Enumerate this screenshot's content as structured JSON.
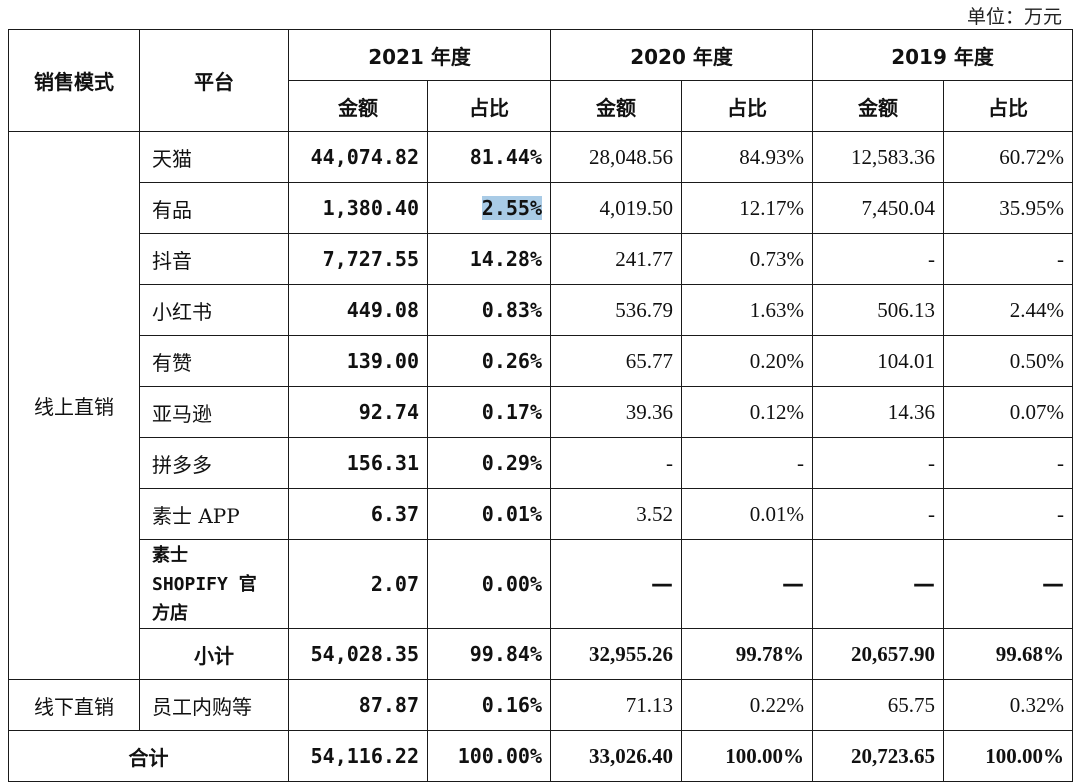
{
  "unit_label": "单位：万元",
  "headers": {
    "mode": "销售模式",
    "platform": "平台",
    "years": [
      "2021 年度",
      "2020 年度",
      "2019 年度"
    ],
    "amount": "金额",
    "ratio": "占比"
  },
  "groups": [
    {
      "mode": "线上直销",
      "rows": [
        {
          "platform": "天猫",
          "v2021": "44,074.82",
          "p2021": "81.44%",
          "v2020": "28,048.56",
          "p2020": "84.93%",
          "v2019": "12,583.36",
          "p2019": "60.72%"
        },
        {
          "platform": "有品",
          "v2021": "1,380.40",
          "p2021": "2.55%",
          "v2020": "4,019.50",
          "p2020": "12.17%",
          "v2019": "7,450.04",
          "p2019": "35.95%"
        },
        {
          "platform": "抖音",
          "v2021": "7,727.55",
          "p2021": "14.28%",
          "v2020": "241.77",
          "p2020": "0.73%",
          "v2019": "-",
          "p2019": "-"
        },
        {
          "platform": "小红书",
          "v2021": "449.08",
          "p2021": "0.83%",
          "v2020": "536.79",
          "p2020": "1.63%",
          "v2019": "506.13",
          "p2019": "2.44%"
        },
        {
          "platform": "有赞",
          "v2021": "139.00",
          "p2021": "0.26%",
          "v2020": "65.77",
          "p2020": "0.20%",
          "v2019": "104.01",
          "p2019": "0.50%"
        },
        {
          "platform": "亚马逊",
          "v2021": "92.74",
          "p2021": "0.17%",
          "v2020": "39.36",
          "p2020": "0.12%",
          "v2019": "14.36",
          "p2019": "0.07%"
        },
        {
          "platform": "拼多多",
          "v2021": "156.31",
          "p2021": "0.29%",
          "v2020": "-",
          "p2020": "-",
          "v2019": "-",
          "p2019": "-"
        },
        {
          "platform": "素士 APP",
          "v2021": "6.37",
          "p2021": "0.01%",
          "v2020": "3.52",
          "p2020": "0.01%",
          "v2019": "-",
          "p2019": "-"
        },
        {
          "platform_lines": [
            "素士",
            "SHOPIFY 官",
            "方店"
          ],
          "v2021": "2.07",
          "p2021": "0.00%",
          "v2020": "—",
          "p2020": "—",
          "v2019": "—",
          "p2019": "—"
        }
      ],
      "subtotal": {
        "label": "小计",
        "v2021": "54,028.35",
        "p2021": "99.84%",
        "v2020": "32,955.26",
        "p2020": "99.78%",
        "v2019": "20,657.90",
        "p2019": "99.68%"
      }
    },
    {
      "mode": "线下直销",
      "rows": [
        {
          "platform": "员工内购等",
          "v2021": "87.87",
          "p2021": "0.16%",
          "v2020": "71.13",
          "p2020": "0.22%",
          "v2019": "65.75",
          "p2019": "0.32%"
        }
      ]
    }
  ],
  "total": {
    "label": "合计",
    "v2021": "54,116.22",
    "p2021": "100.00%",
    "v2020": "33,026.40",
    "p2020": "100.00%",
    "v2019": "20,723.65",
    "p2019": "100.00%"
  },
  "colors": {
    "highlight": "#a9cbe6",
    "border": "#1a1a1a"
  }
}
